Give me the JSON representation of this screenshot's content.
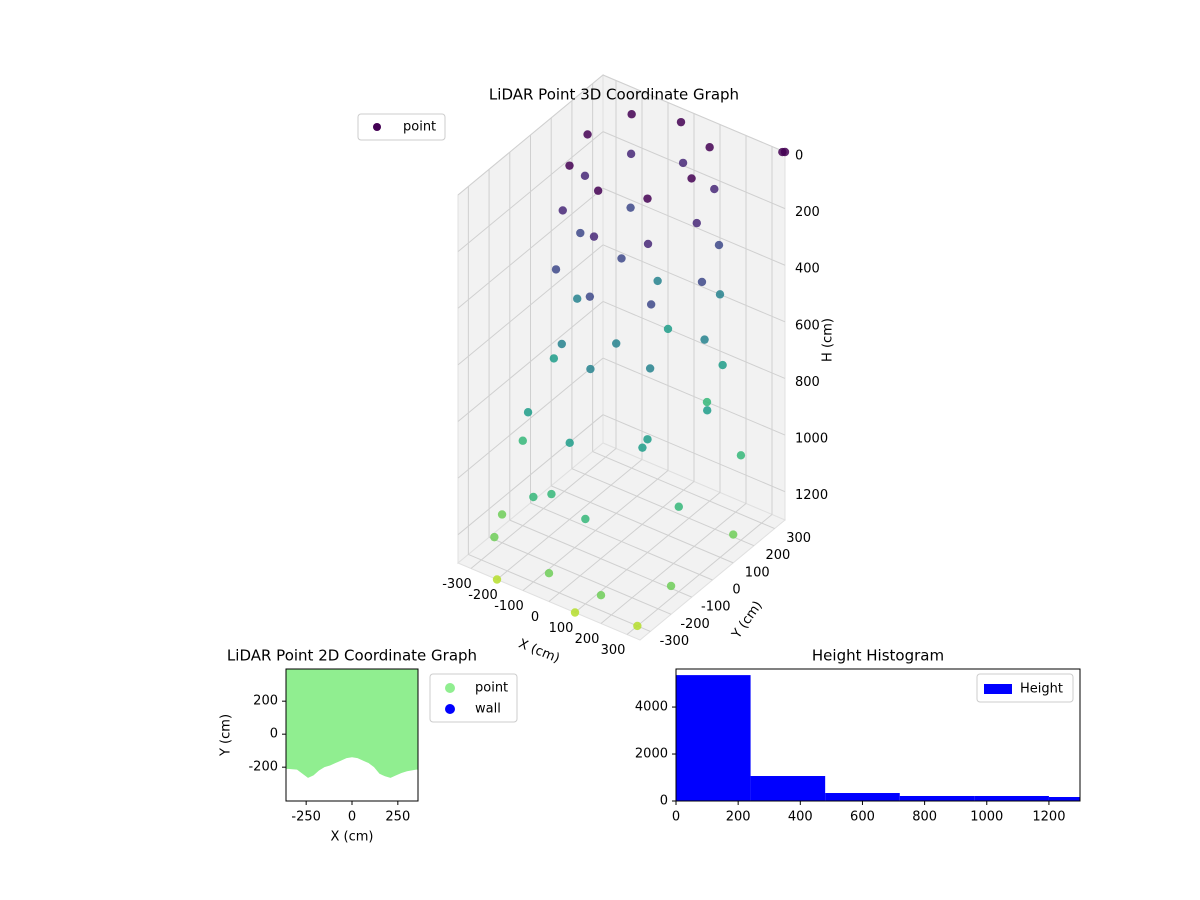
{
  "chart_data": [
    {
      "type": "scatter3d",
      "title": "LiDAR Point 3D Coordinate Graph",
      "xlabel": "X (cm)",
      "ylabel": "Y (cm)",
      "hlabel": "H (cm)",
      "xlim": [
        -350,
        350
      ],
      "ylim": [
        -350,
        350
      ],
      "hlim": [
        0,
        1300
      ],
      "xticks": [
        -300,
        -200,
        -100,
        0,
        100,
        200,
        300
      ],
      "yticks": [
        -300,
        -200,
        -100,
        0,
        100,
        200,
        300
      ],
      "hticks": [
        0,
        200,
        400,
        600,
        800,
        1000,
        1200
      ],
      "colormap": "viridis",
      "legend": "upper left",
      "grid": true,
      "series": [
        {
          "name": "point",
          "color": "#440154",
          "x": [
            -250,
            -200,
            -50,
            100,
            150,
            100,
            -50,
            -200,
            -260,
            -210,
            -50,
            110,
            170,
            110,
            -50,
            -210,
            -270,
            -220,
            -50,
            130,
            190,
            120,
            -220,
            -250,
            -150,
            0,
            150,
            200,
            100,
            -100,
            -300,
            -200,
            0,
            200,
            250,
            150,
            -100,
            -300,
            -100,
            100,
            300,
            300,
            50,
            -250,
            0,
            200,
            350,
            350,
            -300,
            -200,
            100,
            300,
            350,
            300,
            0,
            -100,
            100,
            -150
          ],
          "y": [
            150,
            0,
            -50,
            0,
            150,
            300,
            350,
            300,
            150,
            -20,
            -70,
            -10,
            150,
            310,
            360,
            310,
            140,
            -40,
            -90,
            -20,
            150,
            320,
            320,
            100,
            -100,
            -150,
            -50,
            150,
            350,
            300,
            50,
            -200,
            -250,
            -150,
            100,
            300,
            350,
            -100,
            -300,
            -300,
            -100,
            200,
            350,
            -300,
            -350,
            -350,
            -200,
            100,
            -200,
            -350,
            -350,
            -300,
            350,
            400,
            0,
            100,
            0,
            -150
          ],
          "h": [
            50,
            50,
            50,
            50,
            50,
            50,
            50,
            50,
            200,
            200,
            200,
            200,
            200,
            200,
            200,
            200,
            400,
            400,
            400,
            400,
            400,
            400,
            400,
            600,
            600,
            600,
            600,
            600,
            600,
            600,
            800,
            800,
            800,
            800,
            800,
            800,
            800,
            1000,
            1000,
            1000,
            1000,
            1000,
            1000,
            1200,
            1200,
            1200,
            1200,
            1200,
            1200,
            1300,
            1300,
            1300,
            0,
            50,
            300,
            700,
            900,
            1100
          ]
        }
      ]
    },
    {
      "type": "area",
      "title": "LiDAR Point 2D Coordinate Graph",
      "xlabel": "X (cm)",
      "ylabel": "Y (cm)",
      "xlim": [
        -360,
        360
      ],
      "ylim": [
        -405,
        395
      ],
      "xticks": [
        -250,
        0,
        250
      ],
      "yticks": [
        -200,
        0,
        200
      ],
      "legend": "upper right outside",
      "series": [
        {
          "name": "point",
          "color": "#90ee90",
          "x": [
            -350,
            -300,
            -270,
            -240,
            -210,
            -180,
            -150,
            -120,
            -90,
            -60,
            -30,
            0,
            30,
            60,
            90,
            120,
            150,
            180,
            210,
            240,
            270,
            300,
            350
          ],
          "values": [
            -210,
            -215,
            -240,
            -265,
            -250,
            -220,
            -200,
            -190,
            -175,
            -160,
            -145,
            -140,
            -145,
            -160,
            -175,
            -200,
            -240,
            -255,
            -265,
            -250,
            -235,
            -225,
            -215
          ]
        },
        {
          "name": "wall",
          "color": "#0000ff",
          "x": [],
          "values": []
        }
      ]
    },
    {
      "type": "histogram",
      "title": "Height Histogram",
      "xlim": [
        0,
        1300
      ],
      "ylim": [
        0,
        5620
      ],
      "xticks": [
        0,
        200,
        400,
        600,
        800,
        1000,
        1200
      ],
      "yticks": [
        0,
        2000,
        4000
      ],
      "legend": "upper right",
      "bins": [
        0,
        240,
        480,
        720,
        960,
        1200,
        1440
      ],
      "series": [
        {
          "name": "Height",
          "color": "#0000ff",
          "values": [
            5360,
            1064,
            340,
            213,
            213,
            170
          ]
        }
      ]
    }
  ]
}
